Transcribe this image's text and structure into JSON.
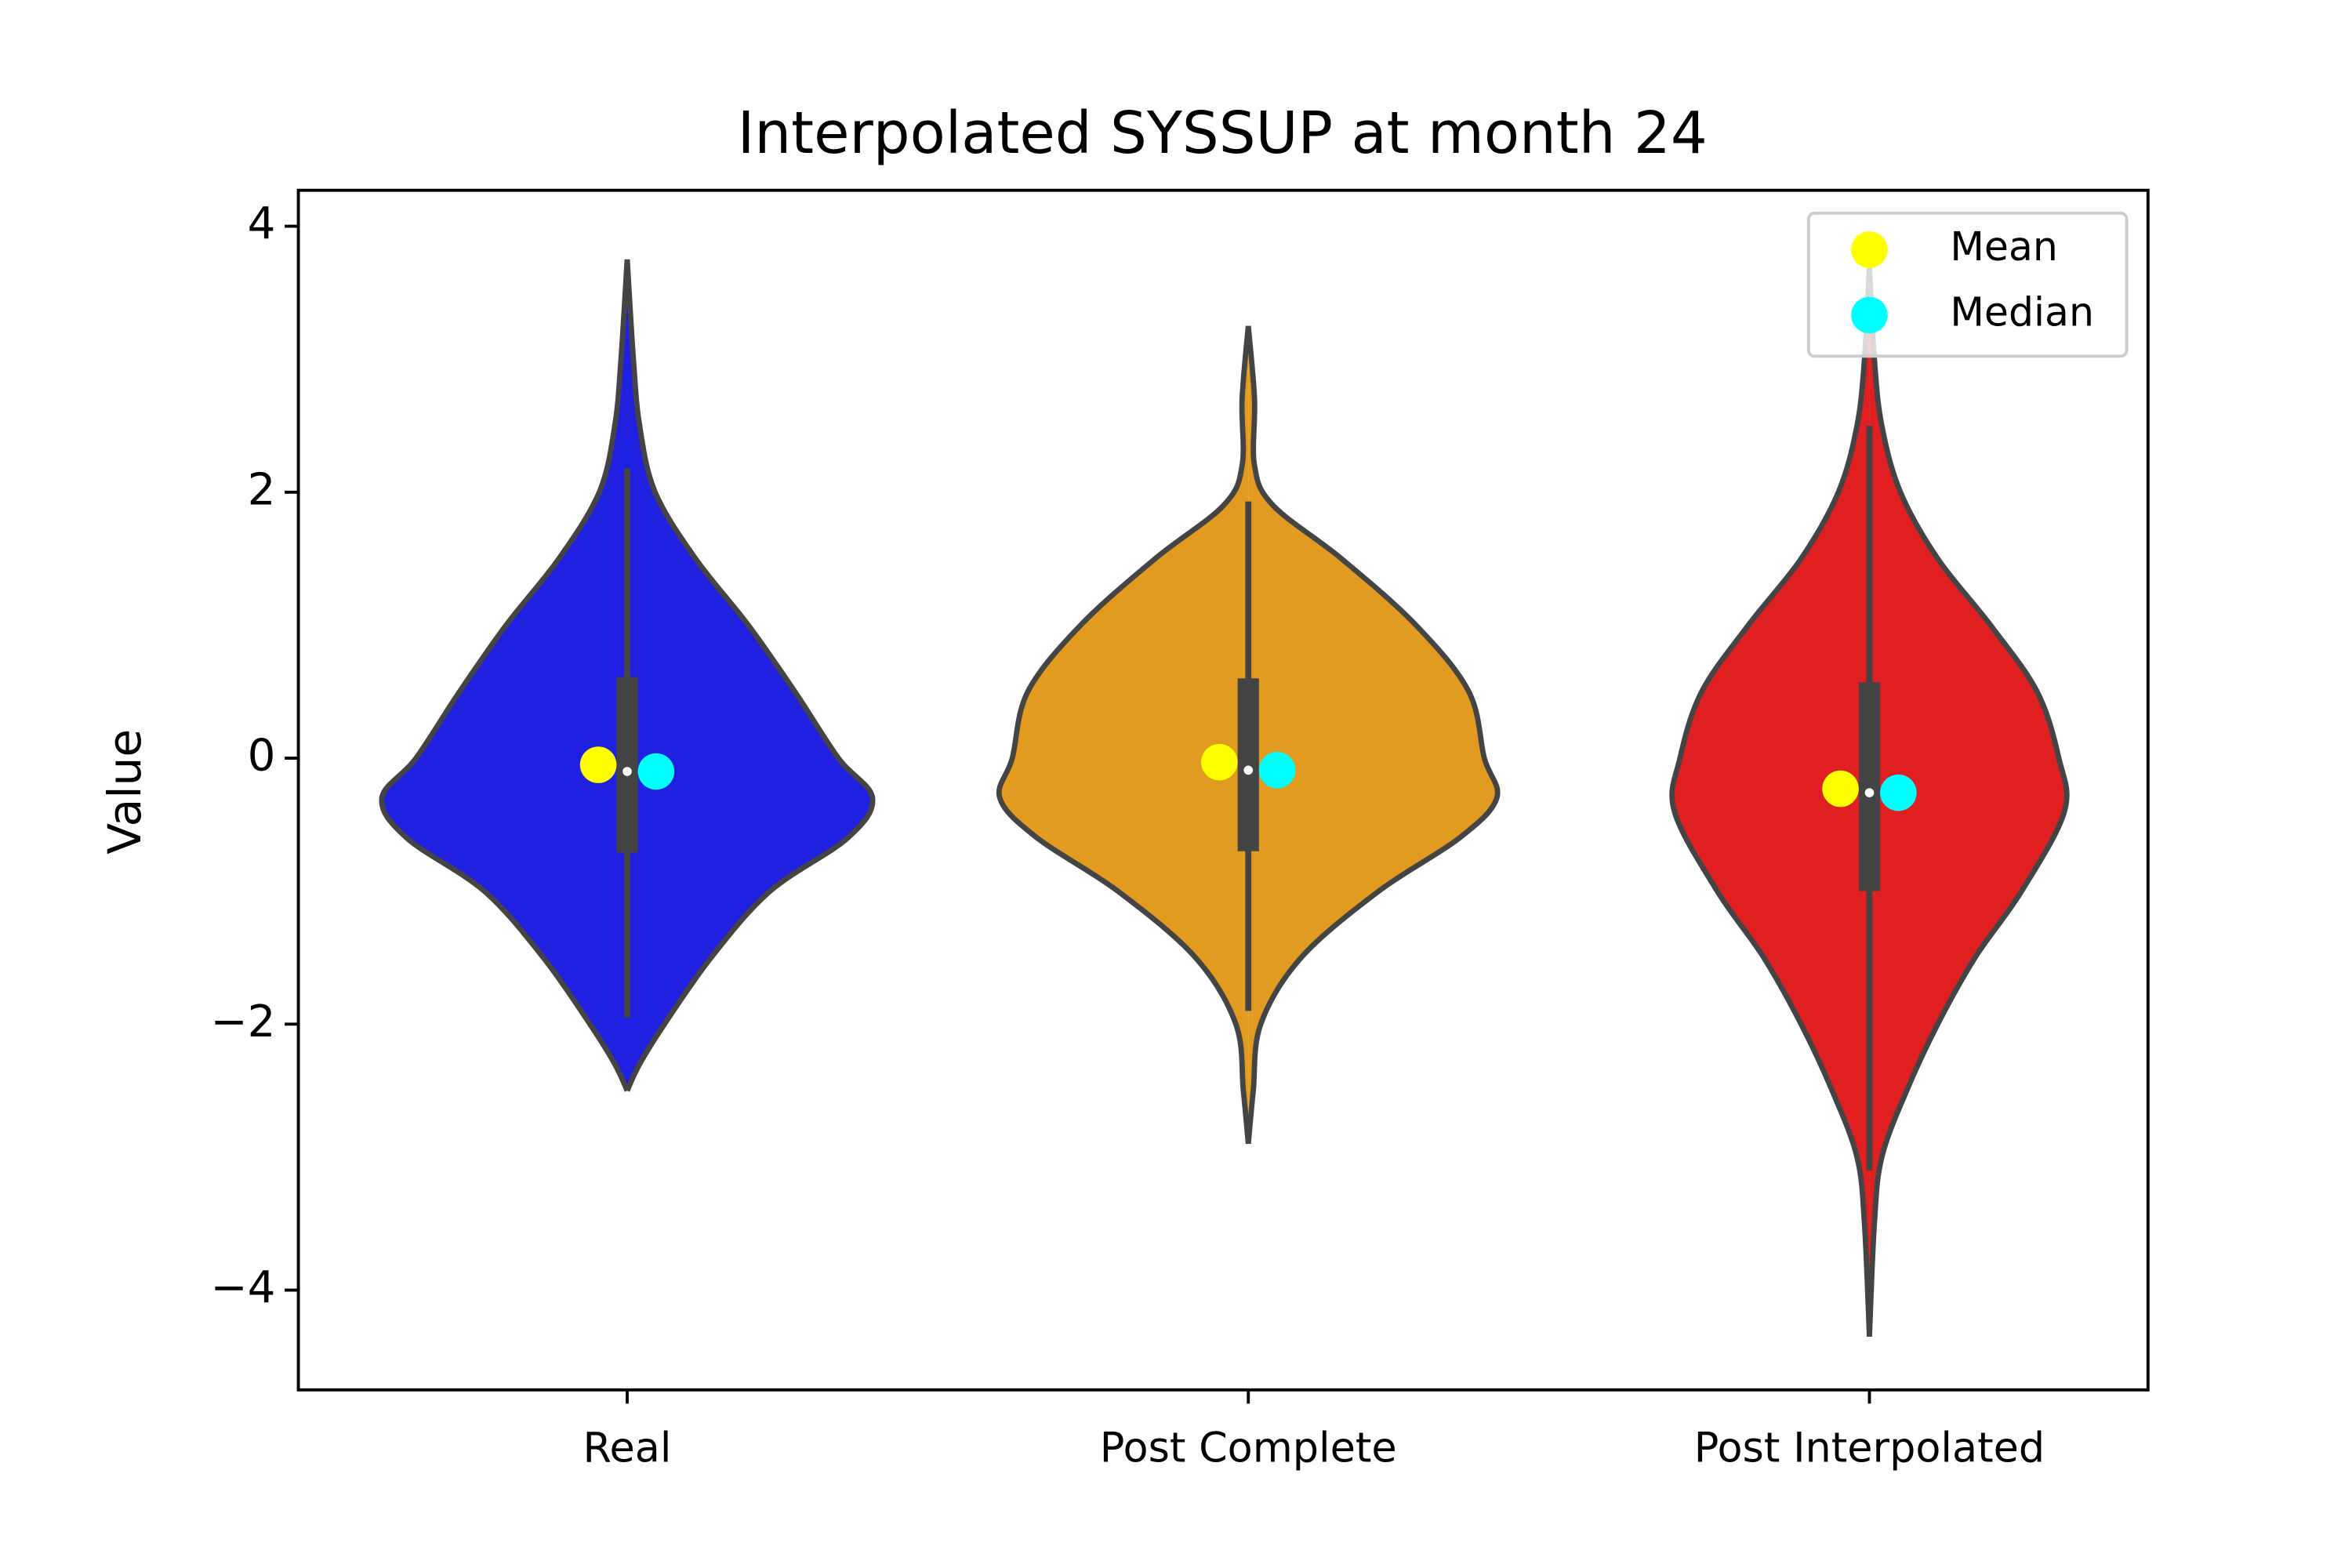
{
  "chart_data": {
    "type": "violin",
    "title": "Interpolated SYSSUP at month 24",
    "y_label": "Value",
    "categories": [
      "Real",
      "Post Complete",
      "Post Interpolated"
    ],
    "ylim": [
      -4.75,
      4.27
    ],
    "yticks": [
      {
        "value": -4,
        "label": "−4"
      },
      {
        "value": -2,
        "label": "−2"
      },
      0,
      2,
      4
    ],
    "legend_position": "upper right",
    "violins": [
      {
        "color": "#2020e0",
        "kde_y": [
          -2.5,
          -2.3,
          -2,
          -1.5,
          -1,
          -0.6,
          -0.3,
          0,
          0.5,
          1,
          1.5,
          2,
          2.5,
          3,
          3.75
        ],
        "kde_width": [
          0,
          0.02,
          0.06,
          0.135,
          0.23,
          0.355,
          0.395,
          0.34,
          0.27,
          0.195,
          0.11,
          0.045,
          0.02,
          0.01,
          0
        ],
        "q1": -0.71,
        "q3": 0.61,
        "whisker_low": -1.95,
        "whisker_high": 2.18
      },
      {
        "color": "#e09b20",
        "kde_y": [
          -2.9,
          -2.5,
          -2,
          -1.5,
          -1,
          -0.6,
          -0.3,
          0,
          0.5,
          1,
          1.5,
          1.9,
          2.2,
          2.7,
          3.25
        ],
        "kde_width": [
          0,
          0.008,
          0.02,
          0.085,
          0.21,
          0.34,
          0.4,
          0.38,
          0.355,
          0.27,
          0.15,
          0.04,
          0.01,
          0.01,
          0
        ],
        "q1": -0.7,
        "q3": 0.6,
        "whisker_low": -1.9,
        "whisker_high": 1.93
      },
      {
        "color": "#e02020",
        "kde_y": [
          -4.35,
          -3.5,
          -3,
          -2.5,
          -2,
          -1.5,
          -1,
          -0.4,
          0,
          0.5,
          1,
          1.5,
          2,
          2.5,
          3,
          3.7
        ],
        "kde_width": [
          0,
          0.008,
          0.02,
          0.06,
          0.11,
          0.17,
          0.245,
          0.314,
          0.305,
          0.27,
          0.195,
          0.11,
          0.05,
          0.02,
          0.008,
          0
        ],
        "q1": -1.0,
        "q3": 0.57,
        "whisker_low": -3.1,
        "whisker_high": 2.5
      }
    ],
    "series": [
      {
        "name": "Mean",
        "color": "yellow",
        "values": [
          -0.05,
          -0.03,
          -0.23
        ]
      },
      {
        "name": "Median",
        "color": "cyan",
        "values": [
          -0.1,
          -0.09,
          -0.26
        ]
      }
    ]
  }
}
